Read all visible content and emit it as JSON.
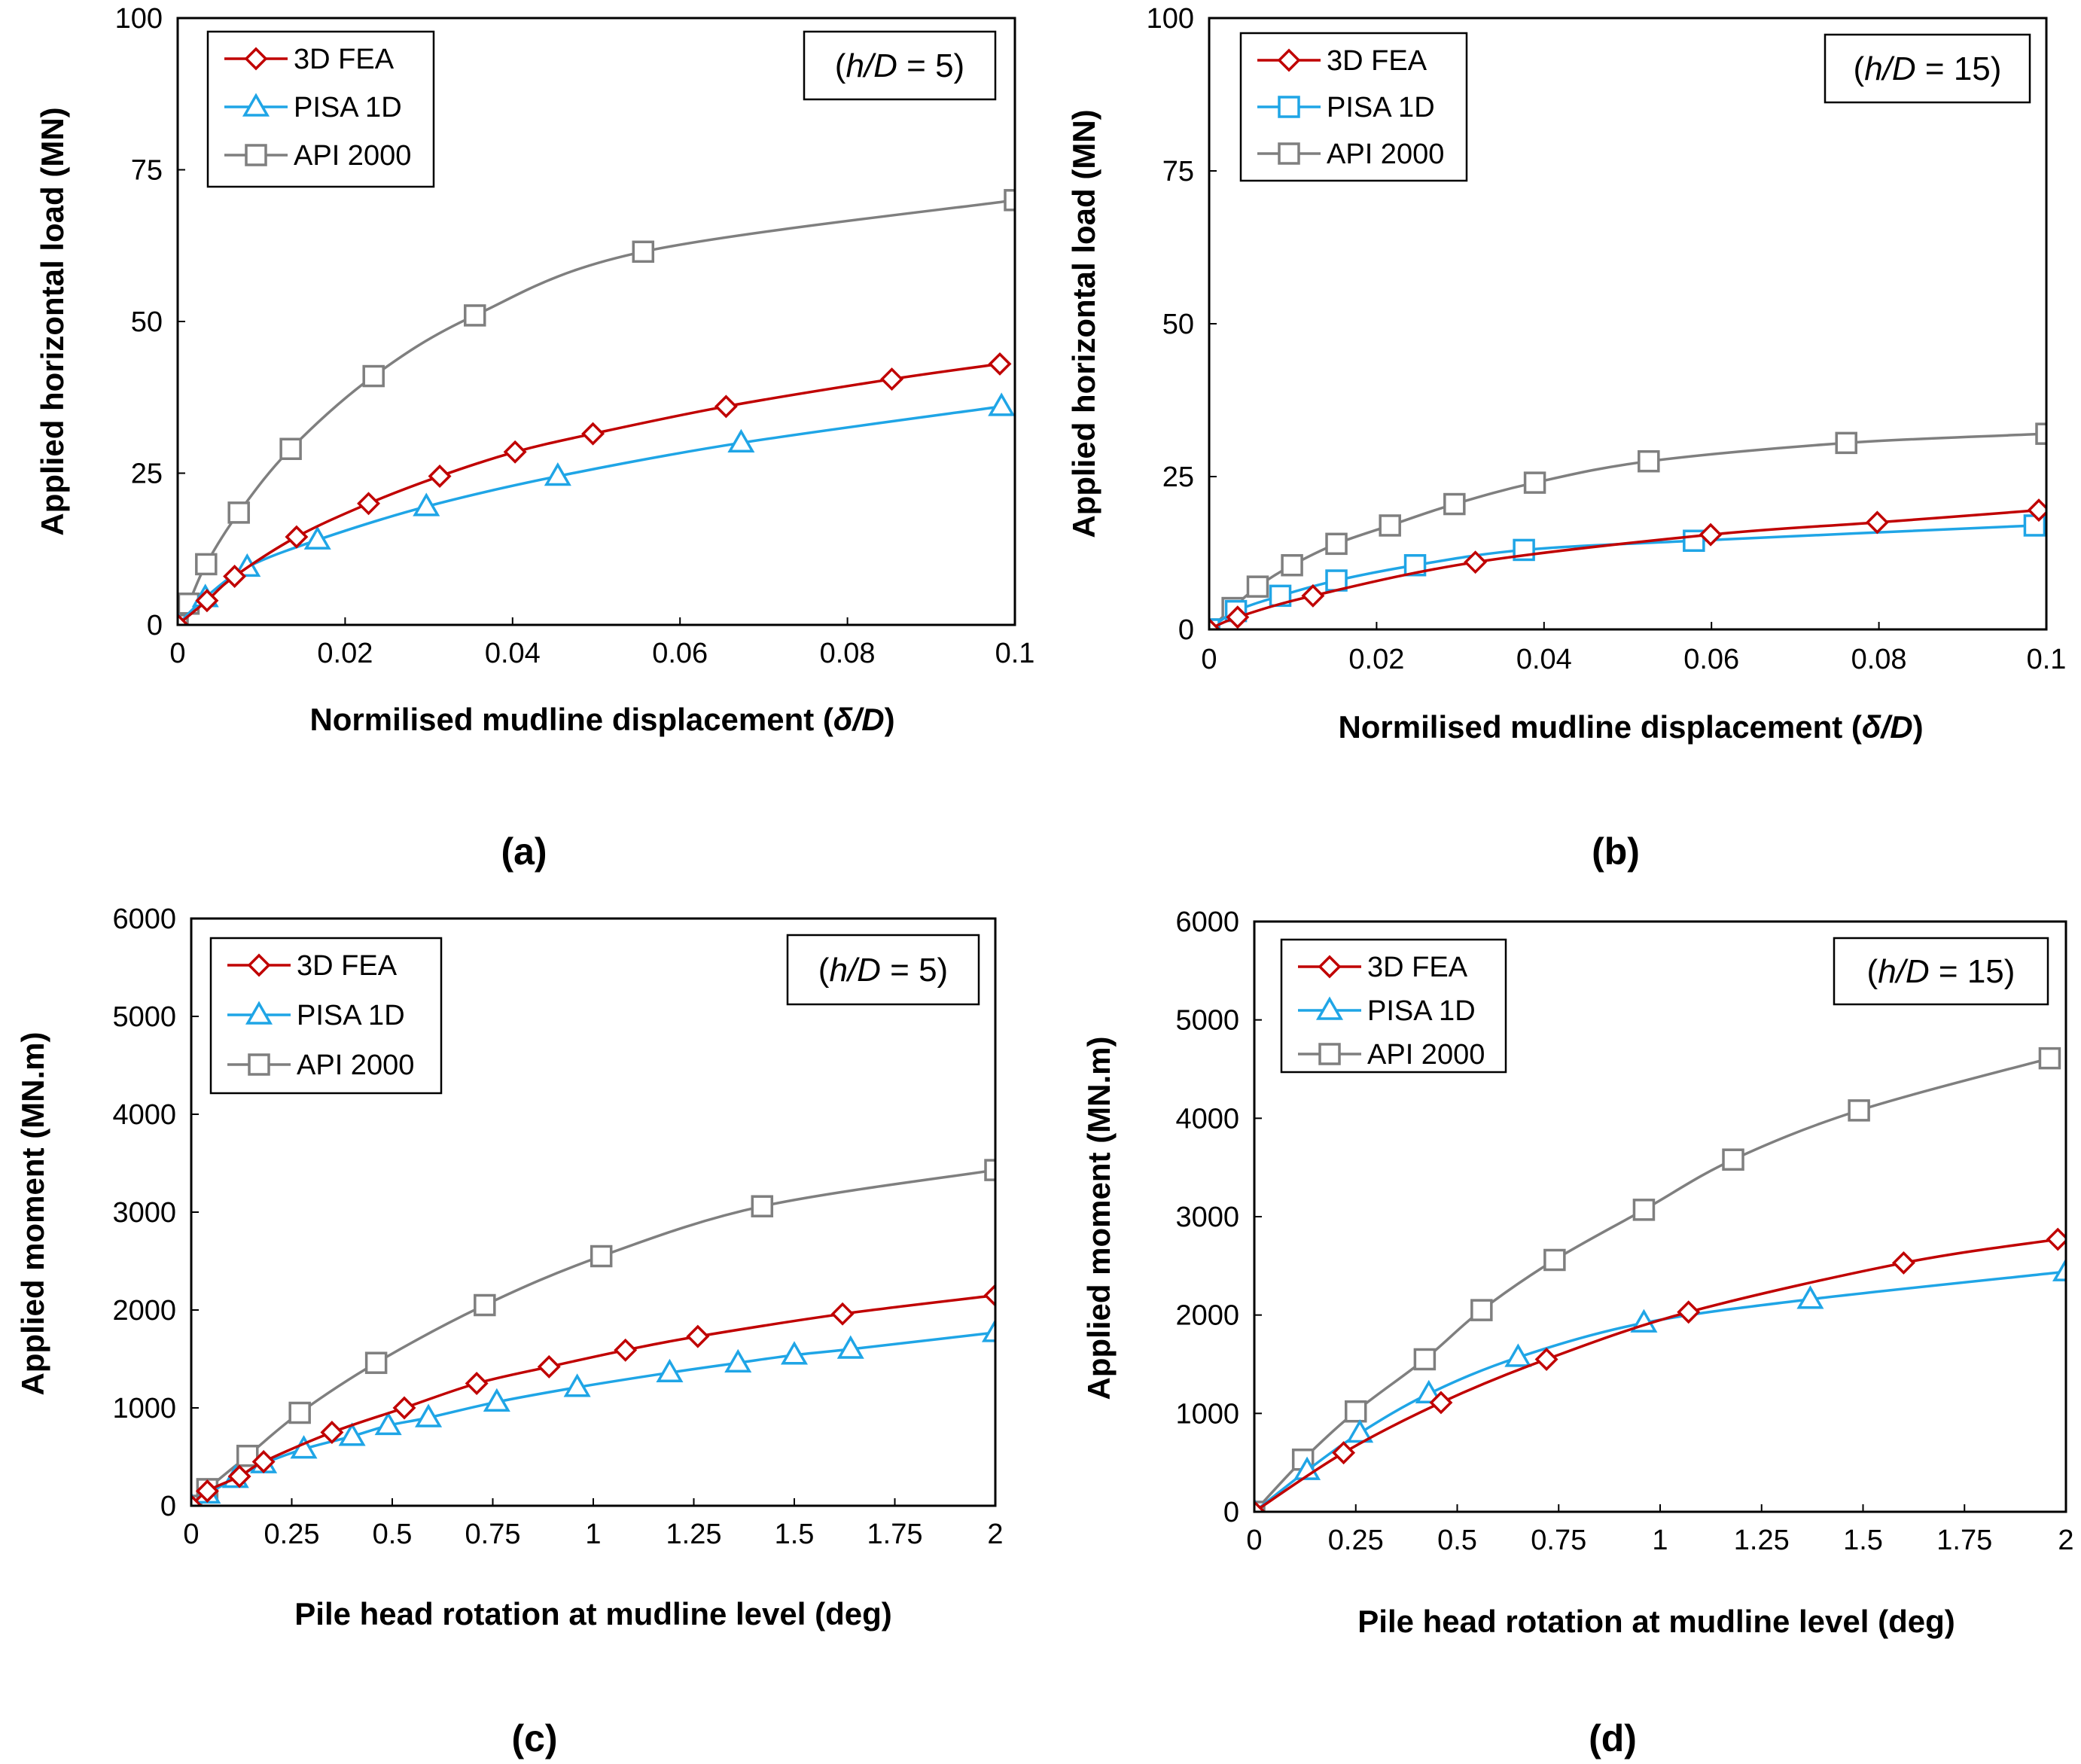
{
  "colors": {
    "fea": "#c00000",
    "pisa": "#1fa5e6",
    "api": "#7f7f7f"
  },
  "chart_data": [
    {
      "type": "line",
      "panel_label": "(a)",
      "annotation": {
        "pre": "(",
        "var": "h/D",
        "post": " = 5)"
      },
      "xlabel": {
        "text": "Normilised mudline displacement (",
        "var": "δ/D",
        "close": ")"
      },
      "ylabel": "Applied horizontal load (MN)",
      "xlim": [
        0,
        0.1
      ],
      "ylim": [
        0,
        100
      ],
      "xticks": [
        "0",
        "0.02",
        "0.04",
        "0.06",
        "0.08",
        "0.1"
      ],
      "yticks": [
        "0",
        "25",
        "50",
        "75",
        "100"
      ],
      "legend_position": "top-left",
      "series": [
        {
          "name": "3D FEA",
          "marker": "diamond",
          "color": "#c00000",
          "x": [
            0,
            0.0035,
            0.0068,
            0.0142,
            0.0228,
            0.0313,
            0.0403,
            0.0496,
            0.0655,
            0.0853,
            0.0982
          ],
          "y": [
            0,
            4,
            8,
            14.5,
            20,
            24.5,
            28.5,
            31.5,
            36,
            40.5,
            43
          ]
        },
        {
          "name": "PISA 1D",
          "marker": "triangle",
          "color": "#1fa5e6",
          "x": [
            0,
            0.0033,
            0.0083,
            0.0167,
            0.0297,
            0.0454,
            0.0673,
            0.0984
          ],
          "y": [
            0,
            4.5,
            9.5,
            14,
            19.5,
            24.5,
            30,
            36
          ]
        },
        {
          "name": "API 2000",
          "marker": "square",
          "color": "#7f7f7f",
          "x": [
            0,
            0.0013,
            0.0034,
            0.0073,
            0.0135,
            0.0234,
            0.0355,
            0.0556,
            0.1
          ],
          "y": [
            0,
            3.5,
            10,
            18.5,
            29,
            41,
            51,
            61.5,
            70
          ]
        }
      ]
    },
    {
      "type": "line",
      "panel_label": "(b)",
      "annotation": {
        "pre": "(",
        "var": "h/D",
        "post": " = 15)"
      },
      "xlabel": {
        "text": "Normilised mudline displacement (",
        "var": "δ/D",
        "close": ")"
      },
      "ylabel": "Applied horizontal load (MN)",
      "xlim": [
        0,
        0.1
      ],
      "ylim": [
        0,
        100
      ],
      "xticks": [
        "0",
        "0.02",
        "0.04",
        "0.06",
        "0.08",
        "0.1"
      ],
      "yticks": [
        "0",
        "25",
        "50",
        "75",
        "100"
      ],
      "legend_position": "top-left",
      "series": [
        {
          "name": "3D FEA",
          "marker": "diamond",
          "color": "#c00000",
          "x": [
            0,
            0.0034,
            0.0124,
            0.0318,
            0.0599,
            0.0798,
            0.0991
          ],
          "y": [
            0,
            2,
            5.5,
            11,
            15.5,
            17.5,
            19.5
          ]
        },
        {
          "name": "PISA 1D",
          "marker": "square",
          "color": "#1fa5e6",
          "x": [
            0,
            0.0032,
            0.0085,
            0.0152,
            0.0246,
            0.0376,
            0.0579,
            0.0986
          ],
          "y": [
            0,
            3,
            5.5,
            8,
            10.5,
            13,
            14.5,
            17
          ]
        },
        {
          "name": "API 2000",
          "marker": "square",
          "color": "#7f7f7f",
          "x": [
            0,
            0.0028,
            0.0058,
            0.0099,
            0.0152,
            0.0216,
            0.0293,
            0.0389,
            0.0525,
            0.0761,
            0.1
          ],
          "y": [
            0,
            3.5,
            7,
            10.5,
            14,
            17,
            20.5,
            24,
            27.5,
            30.5,
            32
          ]
        }
      ]
    },
    {
      "type": "line",
      "panel_label": "(c)",
      "annotation": {
        "pre": "(",
        "var": "h/D",
        "post": " = 5)"
      },
      "xlabel": {
        "text": "Pile head rotation at mudline level (deg)",
        "var": "",
        "close": ""
      },
      "ylabel": "Applied moment (MN.m)",
      "xlim": [
        0,
        2
      ],
      "ylim": [
        0,
        6000
      ],
      "xticks": [
        "0",
        "0.25",
        "0.5",
        "0.75",
        "1",
        "1.25",
        "1.5",
        "1.75",
        "2"
      ],
      "yticks": [
        "0",
        "1000",
        "2000",
        "3000",
        "4000",
        "5000",
        "6000"
      ],
      "legend_position": "top-left",
      "series": [
        {
          "name": "3D FEA",
          "marker": "diamond",
          "color": "#c00000",
          "x": [
            0,
            0.04,
            0.12,
            0.18,
            0.35,
            0.53,
            0.71,
            0.89,
            1.08,
            1.26,
            1.62,
            2.0
          ],
          "y": [
            0,
            150,
            300,
            450,
            750,
            1000,
            1250,
            1420,
            1590,
            1730,
            1960,
            2150
          ]
        },
        {
          "name": "PISA 1D",
          "marker": "triangle",
          "color": "#1fa5e6",
          "x": [
            0,
            0.04,
            0.11,
            0.18,
            0.28,
            0.4,
            0.49,
            0.59,
            0.76,
            0.96,
            1.19,
            1.36,
            1.5,
            1.64,
            2.0
          ],
          "y": [
            0,
            120,
            280,
            430,
            580,
            710,
            820,
            900,
            1060,
            1210,
            1360,
            1460,
            1540,
            1600,
            1770
          ]
        },
        {
          "name": "API 2000",
          "marker": "square",
          "color": "#7f7f7f",
          "x": [
            0,
            0.04,
            0.14,
            0.27,
            0.46,
            0.73,
            1.02,
            1.42,
            2.0
          ],
          "y": [
            0,
            170,
            510,
            950,
            1460,
            2050,
            2550,
            3060,
            3430
          ]
        }
      ]
    },
    {
      "type": "line",
      "panel_label": "(d)",
      "annotation": {
        "pre": "(",
        "var": "h/D",
        "post": " = 15)"
      },
      "xlabel": {
        "text": "Pile head rotation at mudline level (deg)",
        "var": "",
        "close": ""
      },
      "ylabel": "Applied moment (MN.m)",
      "xlim": [
        0,
        2
      ],
      "ylim": [
        0,
        6000
      ],
      "xticks": [
        "0",
        "0.25",
        "0.5",
        "0.75",
        "1",
        "1.25",
        "1.5",
        "1.75",
        "2"
      ],
      "yticks": [
        "0",
        "1000",
        "2000",
        "3000",
        "4000",
        "5000",
        "6000"
      ],
      "legend_position": "top-left",
      "series": [
        {
          "name": "3D FEA",
          "marker": "diamond",
          "color": "#c00000",
          "x": [
            0,
            0.22,
            0.46,
            0.72,
            1.07,
            1.6,
            1.98
          ],
          "y": [
            0,
            600,
            1110,
            1550,
            2030,
            2530,
            2770
          ]
        },
        {
          "name": "PISA 1D",
          "marker": "triangle",
          "color": "#1fa5e6",
          "x": [
            0,
            0.13,
            0.26,
            0.43,
            0.65,
            0.96,
            1.37,
            2.0
          ],
          "y": [
            0,
            420,
            800,
            1200,
            1570,
            1920,
            2160,
            2440
          ]
        },
        {
          "name": "API 2000",
          "marker": "square",
          "color": "#7f7f7f",
          "x": [
            0,
            0.12,
            0.25,
            0.42,
            0.56,
            0.74,
            0.96,
            1.18,
            1.49,
            1.96
          ],
          "y": [
            0,
            530,
            1020,
            1550,
            2050,
            2560,
            3070,
            3580,
            4080,
            4610
          ]
        }
      ]
    }
  ]
}
